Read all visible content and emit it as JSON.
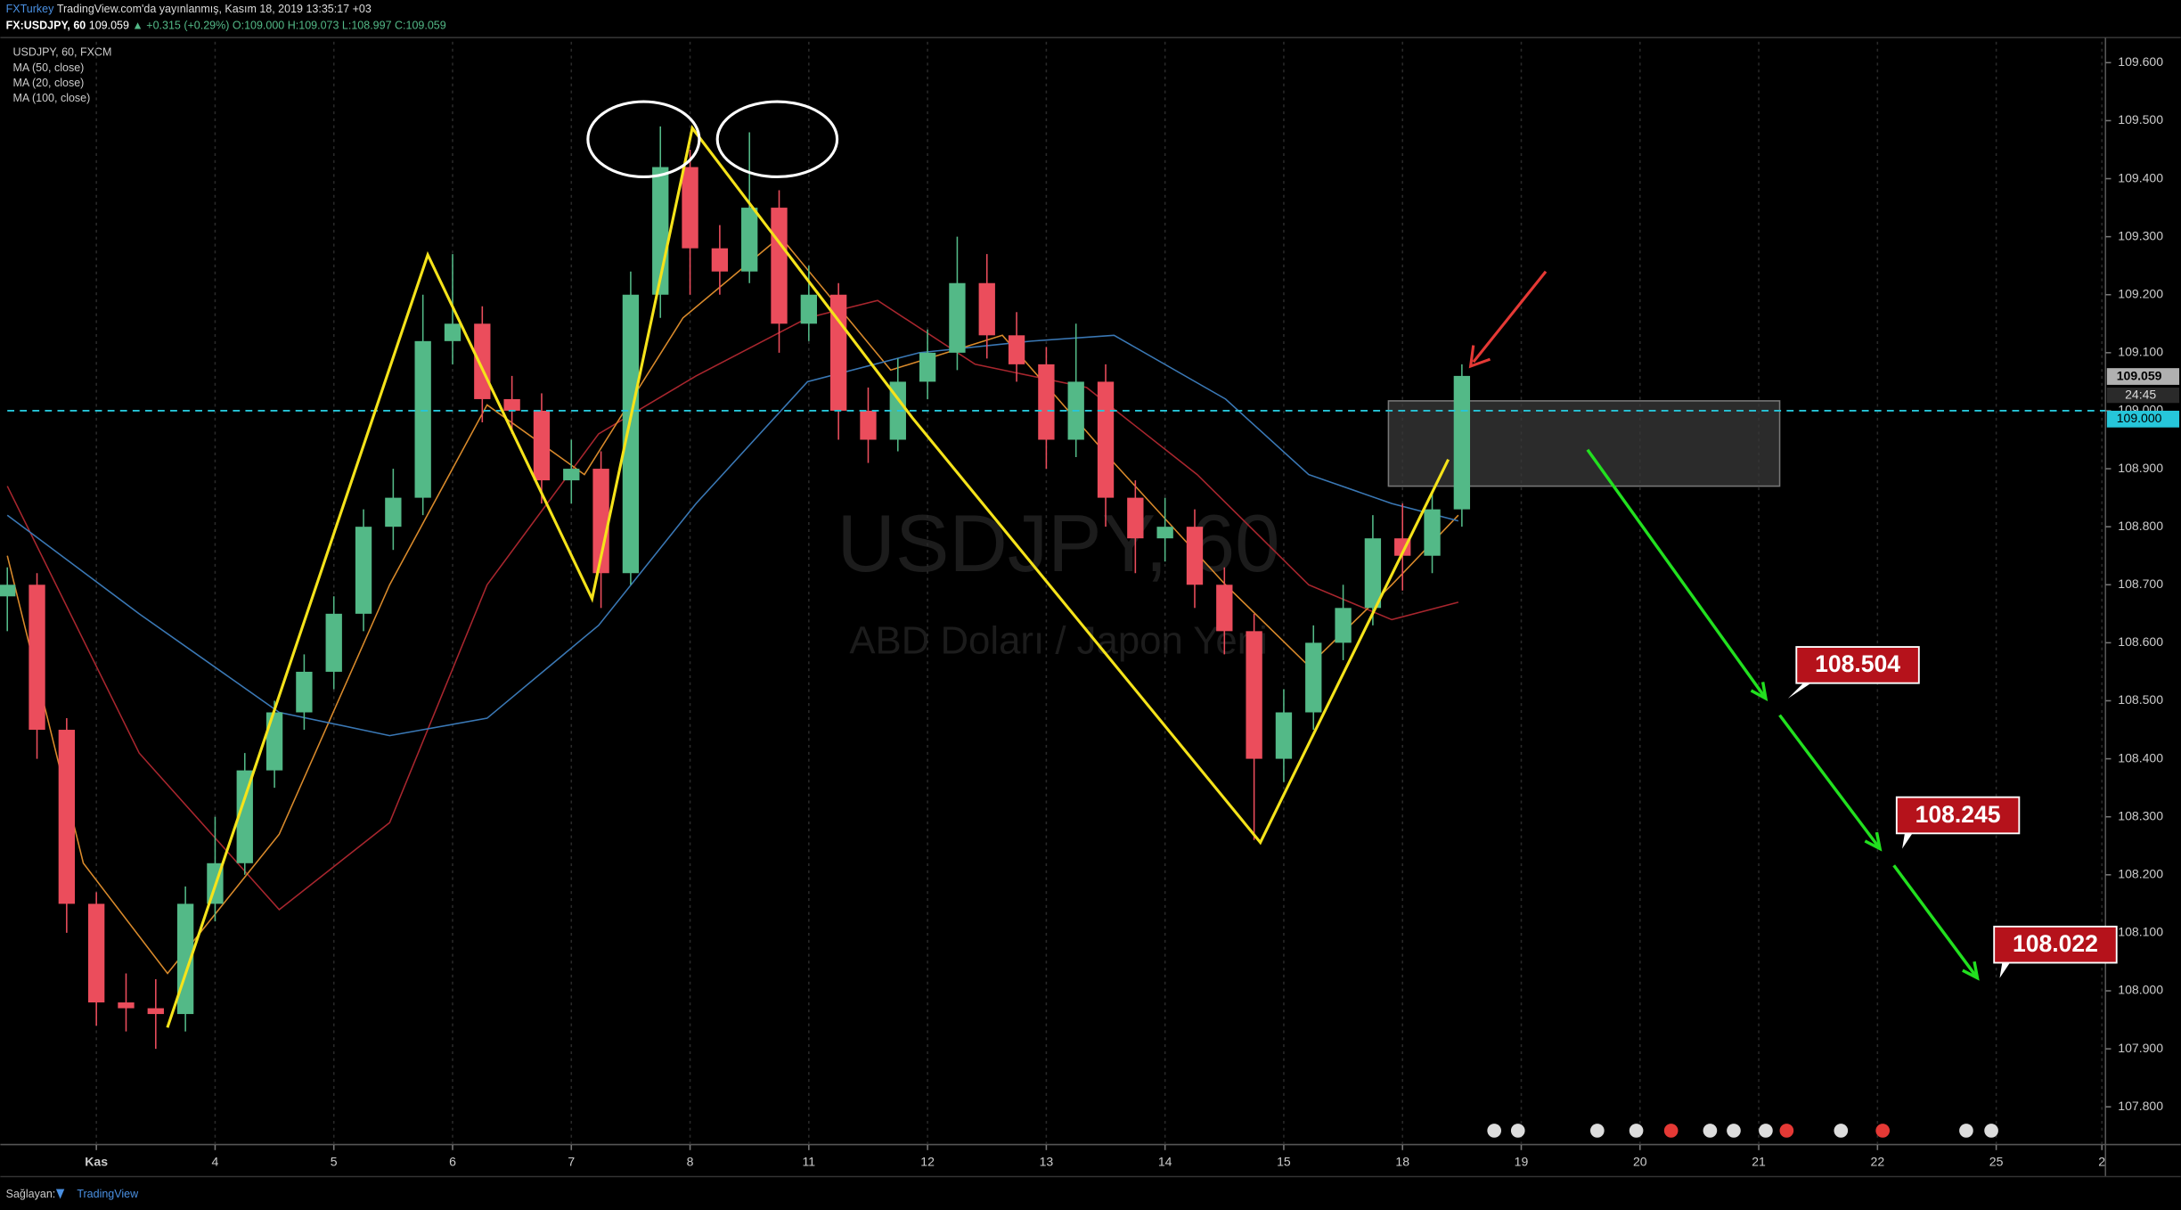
{
  "header": {
    "publisher": "FXTurkey",
    "published": "TradingView.com'da yayınlanmış, Kasım 18, 2019 13:35:17 +03",
    "symbol": "FX:USDJPY, 60",
    "last": "109.059",
    "change": "▲ +0.315 (+0.29%)",
    "open": "O:109.000",
    "high": "H:109.073",
    "low": "L:108.997",
    "close": "C:109.059"
  },
  "footer": {
    "provider": "Sağlayan:",
    "brand": "TradingView"
  },
  "chart_data": {
    "type": "candlestick",
    "title": "USDJPY, 60, FXCM",
    "watermark": [
      "USDJPY, 60",
      "ABD Doları / Japon Yeni"
    ],
    "x": [
      -0.75,
      -0.5,
      -0.25,
      0,
      0.25,
      0.5,
      0.75,
      1,
      1.25,
      1.5,
      1.75,
      2,
      2.25,
      2.5,
      2.75,
      3,
      3.25,
      3.5,
      3.75,
      4,
      4.25,
      4.5,
      4.75,
      5,
      5.25,
      5.5,
      5.75,
      6,
      6.25,
      6.5,
      6.75,
      7,
      7.25,
      7.5,
      7.75,
      8,
      8.25,
      8.5,
      8.75,
      9,
      9.25,
      9.5,
      9.75,
      10,
      10.25,
      10.5,
      10.75,
      11,
      11.25,
      11.5
    ],
    "open": [
      108.68,
      108.7,
      108.45,
      108.15,
      107.98,
      107.97,
      107.96,
      108.15,
      108.22,
      108.38,
      108.48,
      108.55,
      108.65,
      108.8,
      108.85,
      109.12,
      109.15,
      109.02,
      109.0,
      108.88,
      108.9,
      108.72,
      109.2,
      109.42,
      109.28,
      109.24,
      109.35,
      109.15,
      109.2,
      109.0,
      108.95,
      109.05,
      109.1,
      109.22,
      109.13,
      109.08,
      108.95,
      109.05,
      108.85,
      108.78,
      108.8,
      108.7,
      108.62,
      108.4,
      108.48,
      108.6,
      108.66,
      108.78,
      108.75,
      108.83
    ],
    "high": [
      108.73,
      108.72,
      108.47,
      108.17,
      108.03,
      108.02,
      108.18,
      108.3,
      108.41,
      108.5,
      108.58,
      108.68,
      108.83,
      108.9,
      109.2,
      109.27,
      109.18,
      109.06,
      109.03,
      108.95,
      108.93,
      109.24,
      109.49,
      109.45,
      109.32,
      109.48,
      109.38,
      109.25,
      109.22,
      109.04,
      109.09,
      109.14,
      109.3,
      109.27,
      109.17,
      109.11,
      109.15,
      109.08,
      108.88,
      108.85,
      108.83,
      108.73,
      108.65,
      108.52,
      108.63,
      108.7,
      108.82,
      108.84,
      108.86,
      109.08
    ],
    "low": [
      108.62,
      108.4,
      108.1,
      107.94,
      107.93,
      107.9,
      107.93,
      108.12,
      108.2,
      108.35,
      108.45,
      108.52,
      108.62,
      108.76,
      108.82,
      109.08,
      108.98,
      108.96,
      108.84,
      108.84,
      108.66,
      108.7,
      109.16,
      109.2,
      109.2,
      109.22,
      109.1,
      109.12,
      108.95,
      108.91,
      108.93,
      109.02,
      109.07,
      109.09,
      109.05,
      108.9,
      108.92,
      108.8,
      108.72,
      108.74,
      108.66,
      108.58,
      108.26,
      108.36,
      108.45,
      108.57,
      108.63,
      108.69,
      108.72,
      108.8
    ],
    "close": [
      108.7,
      108.45,
      108.15,
      107.98,
      107.97,
      107.96,
      108.15,
      108.22,
      108.38,
      108.48,
      108.55,
      108.65,
      108.8,
      108.85,
      109.12,
      109.15,
      109.02,
      109.0,
      108.88,
      108.9,
      108.72,
      109.2,
      109.42,
      109.28,
      109.24,
      109.35,
      109.15,
      109.2,
      109.0,
      108.95,
      109.05,
      109.1,
      109.22,
      109.13,
      109.08,
      108.95,
      109.05,
      108.85,
      108.78,
      108.8,
      108.7,
      108.62,
      108.4,
      108.48,
      108.6,
      108.66,
      108.78,
      108.75,
      108.83,
      109.06
    ],
    "up_color": "#53b987",
    "down_color": "#eb4d5c",
    "series": [
      {
        "name": "MA (50, close)",
        "color": "#a8262e",
        "x": [
          -0.75,
          0.36,
          1.54,
          2.47,
          3.29,
          4.23,
          5.05,
          5.99,
          6.58,
          7.4,
          8.34,
          9.27,
          10.21,
          10.91,
          11.47
        ],
        "values": [
          108.87,
          108.41,
          108.14,
          108.29,
          108.7,
          108.96,
          109.06,
          109.16,
          109.19,
          109.08,
          109.04,
          108.89,
          108.7,
          108.64,
          108.67
        ]
      },
      {
        "name": "MA (20, close)",
        "color": "#d98a2b",
        "x": [
          -0.75,
          -0.11,
          0.6,
          1.54,
          2.47,
          3.29,
          4.11,
          4.94,
          5.76,
          6.69,
          7.63,
          8.57,
          9.51,
          10.21,
          10.91,
          11.47
        ],
        "values": [
          108.75,
          108.22,
          108.03,
          108.27,
          108.7,
          109.01,
          108.89,
          109.16,
          109.3,
          109.07,
          109.13,
          108.91,
          108.7,
          108.56,
          108.7,
          108.82
        ]
      },
      {
        "name": "MA (100, close)",
        "color": "#3a78b5",
        "x": [
          -0.75,
          0.36,
          1.54,
          2.47,
          3.29,
          4.23,
          5.05,
          5.99,
          6.93,
          7.87,
          8.57,
          9.51,
          10.21,
          10.91,
          11.47
        ],
        "values": [
          108.82,
          108.65,
          108.48,
          108.44,
          108.47,
          108.63,
          108.84,
          109.05,
          109.1,
          109.12,
          109.13,
          109.02,
          108.89,
          108.84,
          108.81
        ]
      }
    ],
    "xlim": [
      -0.75,
      16.92
    ],
    "xticks": [
      {
        "value": 0,
        "label": "Kas"
      },
      {
        "value": 1,
        "label": "4"
      },
      {
        "value": 2,
        "label": "5"
      },
      {
        "value": 3,
        "label": "6"
      },
      {
        "value": 4,
        "label": "7"
      },
      {
        "value": 5,
        "label": "8"
      },
      {
        "value": 6,
        "label": "11"
      },
      {
        "value": 7,
        "label": "12"
      },
      {
        "value": 8,
        "label": "13"
      },
      {
        "value": 9,
        "label": "14"
      },
      {
        "value": 10,
        "label": "15"
      },
      {
        "value": 11,
        "label": "18"
      },
      {
        "value": 12,
        "label": "19"
      },
      {
        "value": 13,
        "label": "20"
      },
      {
        "value": 14,
        "label": "21"
      },
      {
        "value": 15,
        "label": "22"
      },
      {
        "value": 16,
        "label": "25"
      },
      {
        "value": 16.89,
        "label": "2"
      }
    ],
    "ylim": [
      107.735,
      109.636
    ],
    "yticks": [
      {
        "value": 109.6,
        "label": "109.600"
      },
      {
        "value": 109.5,
        "label": "109.500"
      },
      {
        "value": 109.4,
        "label": "109.400"
      },
      {
        "value": 109.3,
        "label": "109.300"
      },
      {
        "value": 109.2,
        "label": "109.200"
      },
      {
        "value": 109.1,
        "label": "109.100"
      },
      {
        "value": 109.0,
        "label": "109.000"
      },
      {
        "value": 108.9,
        "label": "108.900"
      },
      {
        "value": 108.8,
        "label": "108.800"
      },
      {
        "value": 108.7,
        "label": "108.700"
      },
      {
        "value": 108.6,
        "label": "108.600"
      },
      {
        "value": 108.5,
        "label": "108.500"
      },
      {
        "value": 108.4,
        "label": "108.400"
      },
      {
        "value": 108.3,
        "label": "108.300"
      },
      {
        "value": 108.2,
        "label": "108.200"
      },
      {
        "value": 108.1,
        "label": "108.100"
      },
      {
        "value": 108.0,
        "label": "108.000"
      },
      {
        "value": 107.9,
        "label": "107.900"
      },
      {
        "value": 107.8,
        "label": "107.800"
      }
    ],
    "grid": {
      "x": true,
      "y": false
    },
    "last_price": 109.059,
    "countdown": "24:45",
    "level": {
      "value": 109.0,
      "label": "109.000"
    },
    "level_color": "#26c6da",
    "zone": [
      108.87,
      109.017
    ],
    "targets": [
      108.504,
      108.245,
      108.022
    ]
  }
}
